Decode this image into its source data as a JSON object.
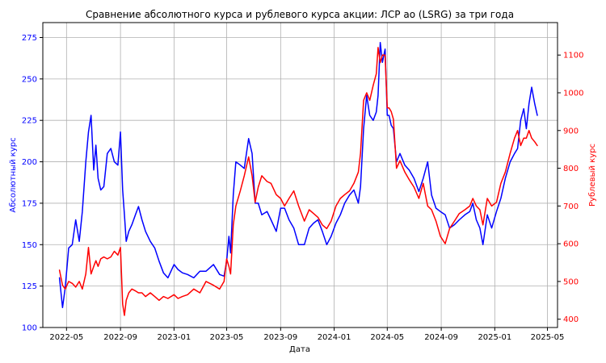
{
  "chart_data": {
    "type": "line",
    "title": "Сравнение абсолютного курса и рублевого курса акции: ЛСР ао (LSRG) за три года",
    "xlabel": "Дата",
    "ylabel_left": "Абсолютный курс",
    "ylabel_right": "Рублевый курс",
    "grid": true,
    "colors": {
      "left": "#0000ff",
      "right": "#ff0000",
      "grid": "#b0b0b0"
    },
    "x_range": [
      "2022-03-08",
      "2025-05-24"
    ],
    "ylim_left": [
      100,
      284
    ],
    "ylim_right": [
      378,
      1186
    ],
    "x_ticks": [
      "2022-05",
      "2022-09",
      "2023-01",
      "2023-05",
      "2023-09",
      "2024-01",
      "2024-05",
      "2024-09",
      "2025-01",
      "2025-05"
    ],
    "y_ticks_left": [
      "100",
      "125",
      "150",
      "175",
      "200",
      "225",
      "250",
      "275"
    ],
    "y_ticks_right": [
      "400",
      "500",
      "600",
      "700",
      "800",
      "900",
      "1000",
      "1100"
    ],
    "series": [
      {
        "axis": "left",
        "color": "#0000ff",
        "x": [
          "2022-04-15",
          "2022-04-22",
          "2022-04-28",
          "2022-05-06",
          "2022-05-14",
          "2022-05-22",
          "2022-05-30",
          "2022-06-06",
          "2022-06-14",
          "2022-06-20",
          "2022-06-26",
          "2022-07-02",
          "2022-07-07",
          "2022-07-12",
          "2022-07-18",
          "2022-07-25",
          "2022-08-02",
          "2022-08-10",
          "2022-08-18",
          "2022-08-26",
          "2022-09-01",
          "2022-09-06",
          "2022-09-10",
          "2022-09-14",
          "2022-09-20",
          "2022-09-27",
          "2022-10-05",
          "2022-10-12",
          "2022-10-20",
          "2022-10-28",
          "2022-11-08",
          "2022-11-18",
          "2022-11-28",
          "2022-12-08",
          "2022-12-18",
          "2023-01-01",
          "2023-01-10",
          "2023-01-20",
          "2023-02-01",
          "2023-02-15",
          "2023-03-01",
          "2023-03-15",
          "2023-04-01",
          "2023-04-15",
          "2023-04-25",
          "2023-05-01",
          "2023-05-06",
          "2023-05-10",
          "2023-05-16",
          "2023-05-22",
          "2023-06-01",
          "2023-06-10",
          "2023-06-20",
          "2023-06-28",
          "2023-07-05",
          "2023-07-12",
          "2023-07-20",
          "2023-08-01",
          "2023-08-10",
          "2023-08-22",
          "2023-09-01",
          "2023-09-10",
          "2023-09-20",
          "2023-10-01",
          "2023-10-12",
          "2023-10-25",
          "2023-11-05",
          "2023-11-15",
          "2023-11-25",
          "2023-12-05",
          "2023-12-15",
          "2023-12-25",
          "2024-01-05",
          "2024-01-15",
          "2024-01-25",
          "2024-02-05",
          "2024-02-15",
          "2024-02-25",
          "2024-03-01",
          "2024-03-08",
          "2024-03-15",
          "2024-03-22",
          "2024-03-30",
          "2024-04-06",
          "2024-04-10",
          "2024-04-15",
          "2024-04-20",
          "2024-04-26",
          "2024-05-01",
          "2024-05-05",
          "2024-05-10",
          "2024-05-15",
          "2024-05-22",
          "2024-05-30",
          "2024-06-10",
          "2024-06-20",
          "2024-07-01",
          "2024-07-12",
          "2024-07-22",
          "2024-08-01",
          "2024-08-10",
          "2024-08-20",
          "2024-08-30",
          "2024-09-10",
          "2024-09-20",
          "2024-10-01",
          "2024-10-12",
          "2024-10-25",
          "2024-11-05",
          "2024-11-12",
          "2024-11-20",
          "2024-11-28",
          "2024-12-05",
          "2024-12-15",
          "2024-12-25",
          "2025-01-05",
          "2025-01-15",
          "2025-01-25",
          "2025-02-05",
          "2025-02-15",
          "2025-02-22",
          "2025-03-01",
          "2025-03-08",
          "2025-03-14",
          "2025-03-20",
          "2025-03-26",
          "2025-04-02",
          "2025-04-08"
        ],
        "values": [
          130,
          112,
          124,
          148,
          150,
          165,
          152,
          170,
          200,
          218,
          228,
          195,
          210,
          190,
          183,
          185,
          205,
          208,
          200,
          198,
          218,
          183,
          168,
          152,
          158,
          162,
          168,
          173,
          165,
          158,
          152,
          148,
          140,
          133,
          130,
          138,
          135,
          133,
          132,
          130,
          134,
          134,
          138,
          132,
          131,
          140,
          155,
          145,
          180,
          200,
          198,
          196,
          214,
          205,
          175,
          175,
          168,
          170,
          165,
          158,
          172,
          172,
          165,
          160,
          150,
          150,
          160,
          163,
          165,
          158,
          150,
          155,
          163,
          168,
          175,
          180,
          183,
          175,
          185,
          220,
          240,
          228,
          225,
          230,
          240,
          272,
          260,
          268,
          228,
          228,
          222,
          220,
          200,
          205,
          198,
          195,
          190,
          182,
          190,
          200,
          180,
          172,
          170,
          168,
          160,
          162,
          165,
          168,
          170,
          175,
          165,
          160,
          150,
          168,
          160,
          170,
          178,
          190,
          200,
          205,
          208,
          225,
          232,
          220,
          235,
          245,
          235,
          228
        ]
      },
      {
        "axis": "right",
        "color": "#ff0000",
        "x": [
          "2022-04-15",
          "2022-04-22",
          "2022-04-28",
          "2022-05-06",
          "2022-05-14",
          "2022-05-22",
          "2022-05-30",
          "2022-06-06",
          "2022-06-14",
          "2022-06-20",
          "2022-06-26",
          "2022-07-02",
          "2022-07-07",
          "2022-07-12",
          "2022-07-18",
          "2022-07-25",
          "2022-08-02",
          "2022-08-10",
          "2022-08-18",
          "2022-08-26",
          "2022-09-01",
          "2022-09-06",
          "2022-09-10",
          "2022-09-14",
          "2022-09-20",
          "2022-09-27",
          "2022-10-05",
          "2022-10-12",
          "2022-10-20",
          "2022-10-28",
          "2022-11-08",
          "2022-11-18",
          "2022-11-28",
          "2022-12-08",
          "2022-12-18",
          "2023-01-01",
          "2023-01-10",
          "2023-01-20",
          "2023-02-01",
          "2023-02-15",
          "2023-03-01",
          "2023-03-15",
          "2023-04-01",
          "2023-04-15",
          "2023-04-25",
          "2023-05-01",
          "2023-05-06",
          "2023-05-10",
          "2023-05-16",
          "2023-05-22",
          "2023-06-01",
          "2023-06-10",
          "2023-06-20",
          "2023-06-28",
          "2023-07-05",
          "2023-07-12",
          "2023-07-20",
          "2023-08-01",
          "2023-08-10",
          "2023-08-22",
          "2023-09-01",
          "2023-09-10",
          "2023-09-20",
          "2023-10-01",
          "2023-10-12",
          "2023-10-25",
          "2023-11-05",
          "2023-11-15",
          "2023-11-25",
          "2023-12-05",
          "2023-12-15",
          "2023-12-25",
          "2024-01-05",
          "2024-01-15",
          "2024-01-25",
          "2024-02-05",
          "2024-02-15",
          "2024-02-25",
          "2024-03-01",
          "2024-03-08",
          "2024-03-15",
          "2024-03-22",
          "2024-03-30",
          "2024-04-06",
          "2024-04-10",
          "2024-04-15",
          "2024-04-20",
          "2024-04-26",
          "2024-05-01",
          "2024-05-05",
          "2024-05-10",
          "2024-05-15",
          "2024-05-22",
          "2024-05-30",
          "2024-06-10",
          "2024-06-20",
          "2024-07-01",
          "2024-07-12",
          "2024-07-22",
          "2024-08-01",
          "2024-08-10",
          "2024-08-20",
          "2024-08-30",
          "2024-09-10",
          "2024-09-20",
          "2024-10-01",
          "2024-10-12",
          "2024-10-25",
          "2024-11-05",
          "2024-11-12",
          "2024-11-20",
          "2024-11-28",
          "2024-12-05",
          "2024-12-15",
          "2024-12-25",
          "2025-01-05",
          "2025-01-15",
          "2025-01-25",
          "2025-02-05",
          "2025-02-15",
          "2025-02-22",
          "2025-03-01",
          "2025-03-08",
          "2025-03-14",
          "2025-03-20",
          "2025-03-26",
          "2025-04-02",
          "2025-04-08"
        ],
        "values": [
          530,
          490,
          480,
          500,
          495,
          485,
          500,
          480,
          520,
          590,
          520,
          540,
          555,
          540,
          560,
          565,
          560,
          565,
          580,
          570,
          590,
          440,
          410,
          450,
          470,
          480,
          475,
          470,
          470,
          460,
          470,
          460,
          450,
          460,
          455,
          465,
          455,
          460,
          465,
          480,
          470,
          500,
          490,
          480,
          500,
          560,
          540,
          520,
          650,
          700,
          740,
          780,
          830,
          780,
          710,
          750,
          780,
          765,
          760,
          730,
          720,
          700,
          720,
          740,
          700,
          660,
          690,
          680,
          670,
          650,
          640,
          660,
          700,
          720,
          730,
          740,
          760,
          790,
          840,
          980,
          1000,
          980,
          1020,
          1050,
          1120,
          1080,
          1100,
          1100,
          960,
          960,
          950,
          930,
          800,
          820,
          790,
          770,
          750,
          720,
          760,
          700,
          690,
          660,
          620,
          600,
          640,
          660,
          680,
          690,
          700,
          720,
          700,
          690,
          650,
          720,
          700,
          710,
          760,
          790,
          840,
          880,
          900,
          860,
          880,
          880,
          900,
          880,
          870,
          860
        ]
      }
    ]
  }
}
